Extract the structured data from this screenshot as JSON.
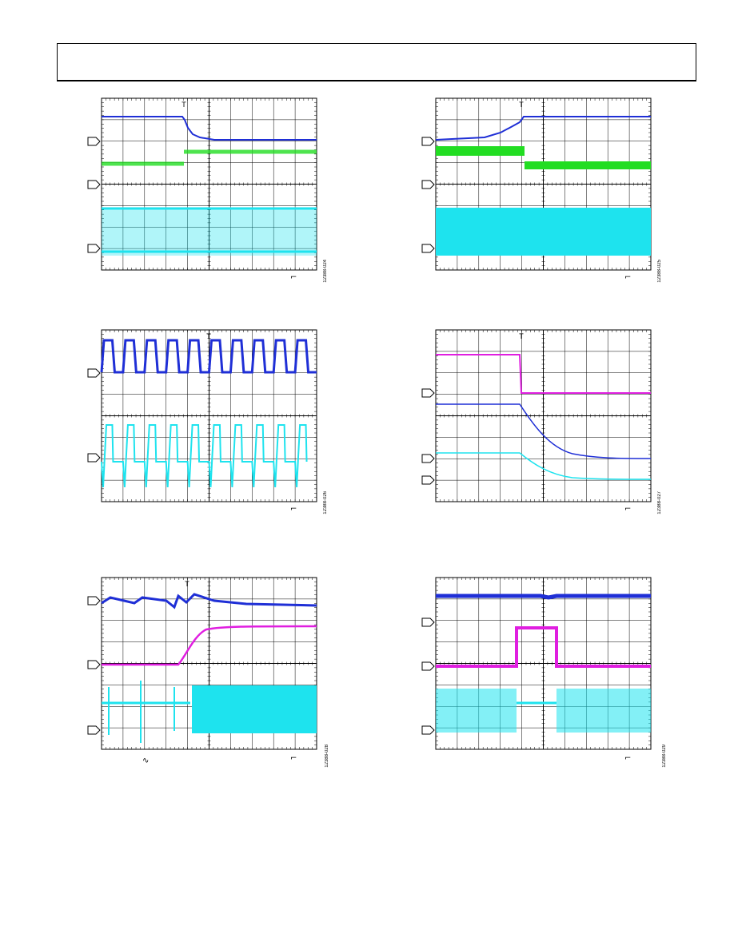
{
  "header": {
    "text": ""
  },
  "figures": [
    {
      "id": "12388-024",
      "trigger": "falling"
    },
    {
      "id": "12388-025",
      "trigger": "rising"
    },
    {
      "id": "12388-026",
      "trigger": "rising"
    },
    {
      "id": "12388-027",
      "trigger": "falling"
    },
    {
      "id": "12388-028",
      "trigger": "rising"
    },
    {
      "id": "12388-029",
      "trigger": "rising"
    }
  ],
  "colors": {
    "blue": "#1f2fd6",
    "green": "#22dd22",
    "cyan": "#1ee3ee",
    "magenta": "#e01ee0",
    "grid": "#000000"
  }
}
